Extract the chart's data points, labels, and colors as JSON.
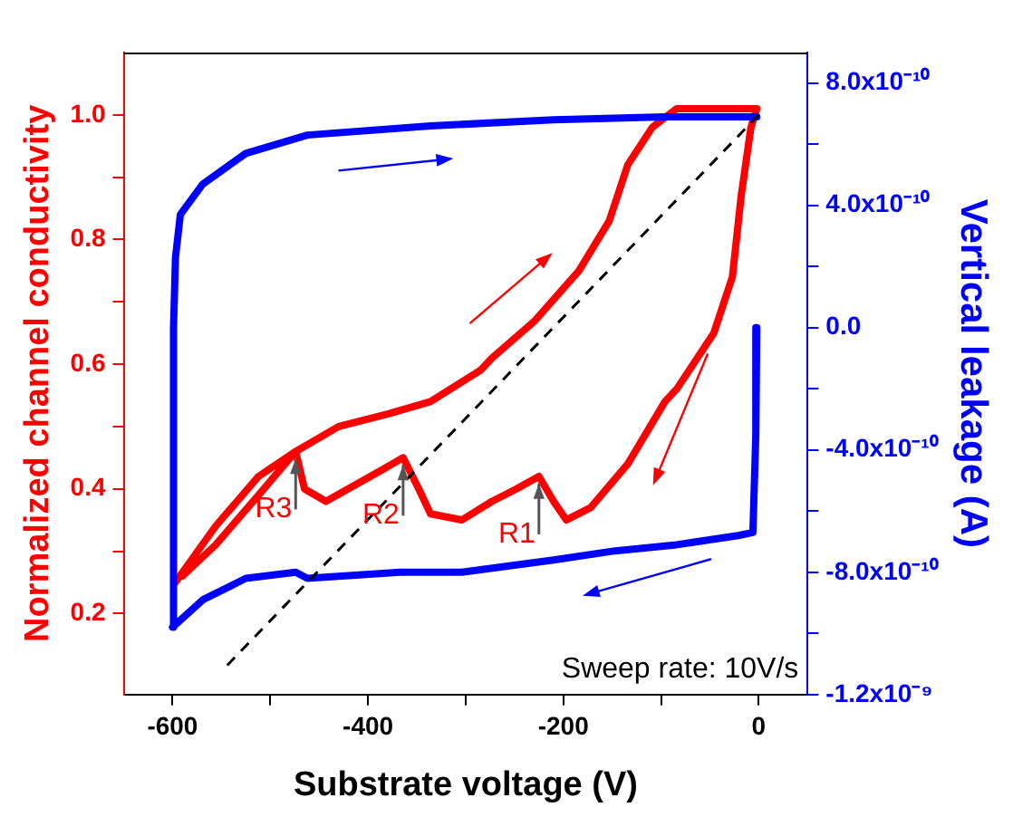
{
  "chart_data": {
    "type": "line",
    "xlabel": "Substrate voltage (V)",
    "ylabel": "Normalized channel conductivity",
    "y2label": "Vertical leakage (A)",
    "xlim": [
      -650,
      50
    ],
    "xticks": [
      -600,
      {
        "value": -500,
        "label": null
      },
      -400,
      {
        "value": -300,
        "label": null
      },
      -200,
      {
        "value": -100,
        "label": null
      },
      0
    ],
    "ylim": [
      0.07,
      1.1
    ],
    "yticks": [
      {
        "value": 0.2,
        "label": "0.2"
      },
      {
        "value": 0.3,
        "label": null
      },
      {
        "value": 0.4,
        "label": "0.4"
      },
      {
        "value": 0.5,
        "label": null
      },
      {
        "value": 0.6,
        "label": "0.6"
      },
      {
        "value": 0.7,
        "label": null
      },
      {
        "value": 0.8,
        "label": "0.8"
      },
      {
        "value": 0.9,
        "label": null
      },
      {
        "value": 1.0,
        "label": "1.0"
      }
    ],
    "y2lim": [
      -1.2e-09,
      9e-10
    ],
    "y2ticks": [
      {
        "value": -1.2e-09,
        "label": "-1.2x10⁻⁹"
      },
      {
        "value": -1e-09,
        "label": null
      },
      {
        "value": -8e-10,
        "label": "-8.0x10⁻¹⁰"
      },
      {
        "value": -6e-10,
        "label": null
      },
      {
        "value": -4e-10,
        "label": "-4.0x10⁻¹⁰"
      },
      {
        "value": -2e-10,
        "label": null
      },
      {
        "value": 0,
        "label": "0.0"
      },
      {
        "value": 2e-10,
        "label": null
      },
      {
        "value": 4e-10,
        "label": "4.0x10⁻¹⁰"
      },
      {
        "value": 6e-10,
        "label": null
      },
      {
        "value": 8e-10,
        "label": "8.0x10⁻¹⁰"
      }
    ],
    "series": [
      {
        "color": "#ff0000",
        "x": [
          -597,
          -556,
          -512,
          -474,
          -430,
          -380,
          -336,
          -285,
          -273,
          -229,
          -184,
          -153,
          -134,
          -109,
          -84,
          -2,
          -8,
          -18,
          -27,
          -46,
          -84,
          -96,
          -134,
          -172,
          -197,
          -210,
          -225,
          -248,
          -273,
          -304,
          -336,
          -348,
          -364,
          -386,
          -443,
          -465,
          -474,
          -512,
          -556,
          -590
        ],
        "values": [
          0.25,
          0.34,
          0.42,
          0.46,
          0.5,
          0.52,
          0.54,
          0.59,
          0.61,
          0.67,
          0.75,
          0.83,
          0.92,
          0.98,
          1.01,
          1.01,
          0.98,
          0.87,
          0.74,
          0.65,
          0.56,
          0.54,
          0.44,
          0.37,
          0.35,
          0.38,
          0.42,
          0.4,
          0.38,
          0.35,
          0.36,
          0.4,
          0.45,
          0.43,
          0.38,
          0.4,
          0.46,
          0.39,
          0.31,
          0.26
        ]
      },
      {
        "color": "#0000ff",
        "axis": "y2",
        "x": [
          -2,
          -3,
          -6,
          -21,
          -84,
          -147,
          -210,
          -304,
          -367,
          -462,
          -474,
          -525,
          -569,
          -600,
          -599,
          -597,
          -592,
          -569,
          -525,
          -462,
          -336,
          -210,
          -96,
          -2
        ],
        "values": [
          0,
          -3.5e-10,
          -6.7e-10,
          -6.8e-10,
          -7.1e-10,
          -7.3e-10,
          -7.6e-10,
          -8e-10,
          -8e-10,
          -8.2e-10,
          -8e-10,
          -8.2e-10,
          -8.9e-10,
          -9.8e-10,
          0,
          2.3e-10,
          3.7e-10,
          4.7e-10,
          5.7e-10,
          6.3e-10,
          6.6e-10,
          6.8e-10,
          6.9e-10,
          6.9e-10
        ]
      },
      {
        "color": "#000000",
        "line_style": "dashed",
        "x": [
          -544,
          0
        ],
        "values": [
          0.117,
          1.0
        ]
      }
    ],
    "annotations": [
      {
        "text": "R1",
        "x": -225,
        "y": 0.42
      },
      {
        "text": "R2",
        "x": -364,
        "y": 0.45
      },
      {
        "text": "R3",
        "x": -474,
        "y": 0.46
      },
      "Sweep rate: 10V/s"
    ],
    "grid": false,
    "legend": false,
    "marker": "none",
    "line_style": "solid"
  }
}
